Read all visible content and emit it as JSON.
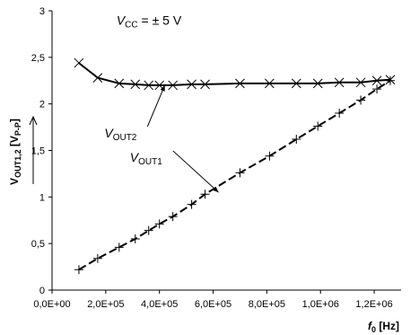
{
  "chart_data": {
    "type": "line",
    "ylabel": {
      "main": "V",
      "sub": "OUT1,2",
      "unit_open": " [V",
      "unit_sub": "P-P",
      "unit_close": "]"
    },
    "xlabel": {
      "main": "f",
      "sub": "0",
      "unit": " [Hz]"
    },
    "xlim": [
      0,
      1300000
    ],
    "ylim": [
      0,
      3
    ],
    "grid": false,
    "x_ticks": [
      0,
      200000,
      400000,
      600000,
      800000,
      1000000,
      1200000
    ],
    "x_tick_labels": [
      "0,0E+00",
      "2,0E+05",
      "4,0E+05",
      "6,0E+05",
      "8,0E+05",
      "1,0E+06",
      "1,2E+06"
    ],
    "y_ticks": [
      0,
      0.5,
      1,
      1.5,
      2,
      2.5,
      3
    ],
    "y_tick_labels": [
      "0",
      "0,5",
      "1",
      "1,5",
      "2",
      "2,5",
      "3"
    ],
    "series": [
      {
        "name": "VOUT1",
        "label_main": "V",
        "label_sub": "OUT1",
        "line_style": "dashed",
        "marker": "plus",
        "label_anchor": {
          "x": 620000,
          "y": 1.05
        },
        "label_at": {
          "x": 290000,
          "y": 1.38
        },
        "x": [
          100000,
          170000,
          250000,
          310000,
          360000,
          400000,
          450000,
          520000,
          570000,
          700000,
          810000,
          910000,
          990000,
          1070000,
          1150000,
          1210000,
          1260000
        ],
        "y": [
          0.22,
          0.34,
          0.46,
          0.55,
          0.64,
          0.71,
          0.79,
          0.92,
          1.03,
          1.26,
          1.44,
          1.62,
          1.76,
          1.9,
          2.04,
          2.16,
          2.25
        ]
      },
      {
        "name": "VOUT2",
        "label_main": "V",
        "label_sub": "OUT2",
        "line_style": "solid",
        "marker": "x",
        "label_anchor": {
          "x": 420000,
          "y": 2.2
        },
        "label_at": {
          "x": 195000,
          "y": 1.64
        },
        "x": [
          100000,
          170000,
          250000,
          310000,
          360000,
          400000,
          450000,
          520000,
          570000,
          700000,
          810000,
          910000,
          990000,
          1070000,
          1150000,
          1210000,
          1260000
        ],
        "y": [
          2.44,
          2.28,
          2.22,
          2.21,
          2.2,
          2.2,
          2.2,
          2.21,
          2.21,
          2.22,
          2.22,
          2.22,
          2.22,
          2.23,
          2.23,
          2.25,
          2.26
        ]
      }
    ],
    "annotation": {
      "main": "V",
      "sub": "CC",
      "rest": " = ± 5 V",
      "at": {
        "x": 240000,
        "y": 2.85
      }
    }
  }
}
